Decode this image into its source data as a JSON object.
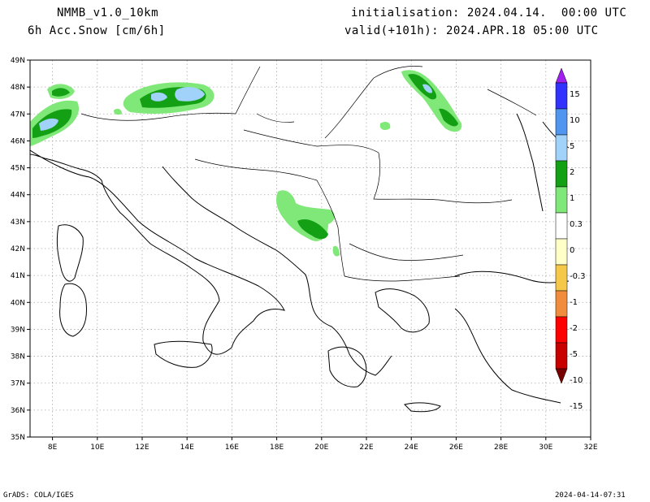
{
  "header": {
    "model": "NMMB_v1.0_10km",
    "field": "6h Acc.Snow [cm/6h]",
    "init": "initialisation: 2024.04.14.  00:00 UTC",
    "valid": "valid(+101h): 2024.APR.18 05:00 UTC"
  },
  "footer": {
    "credit": "GrADS: COLA/IGES",
    "timestamp": "2024-04-14-07:31"
  },
  "map": {
    "lon_range": [
      7,
      32
    ],
    "lat_range": [
      35,
      49
    ],
    "lon_ticks": [
      "8E",
      "10E",
      "12E",
      "14E",
      "16E",
      "18E",
      "20E",
      "22E",
      "24E",
      "26E",
      "28E",
      "30E",
      "32E"
    ],
    "lat_ticks": [
      "35N",
      "36N",
      "37N",
      "38N",
      "39N",
      "40N",
      "41N",
      "42N",
      "43N",
      "44N",
      "45N",
      "46N",
      "47N",
      "48N",
      "49N"
    ],
    "gridlines": true
  },
  "legend": {
    "labels": [
      "15",
      "10",
      "5",
      "2",
      "1",
      "0.3",
      "0",
      "-0.3",
      "-1",
      "-2",
      "-5",
      "-10",
      "-15"
    ],
    "colors": [
      "#a020f0",
      "#3232ff",
      "#5096f0",
      "#a0d2fa",
      "#14a014",
      "#80e878",
      "#ffffff",
      "#ffffc8",
      "#f6c84a",
      "#f08c3c",
      "#ff0000",
      "#c80000",
      "#780000"
    ]
  }
}
